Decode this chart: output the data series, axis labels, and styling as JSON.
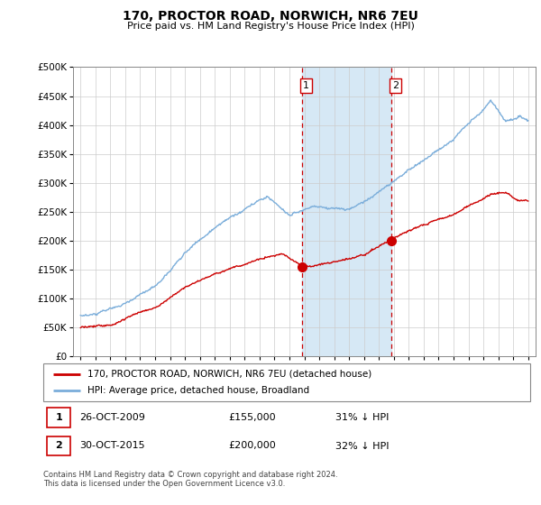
{
  "title": "170, PROCTOR ROAD, NORWICH, NR6 7EU",
  "subtitle": "Price paid vs. HM Land Registry's House Price Index (HPI)",
  "legend_line1": "170, PROCTOR ROAD, NORWICH, NR6 7EU (detached house)",
  "legend_line2": "HPI: Average price, detached house, Broadland",
  "annotation1_label": "1",
  "annotation1_date": "26-OCT-2009",
  "annotation1_price": "£155,000",
  "annotation1_hpi": "31% ↓ HPI",
  "annotation1_year": 2009.82,
  "annotation1_price_val": 155000,
  "annotation2_label": "2",
  "annotation2_date": "30-OCT-2015",
  "annotation2_price": "£200,000",
  "annotation2_hpi": "32% ↓ HPI",
  "annotation2_year": 2015.82,
  "annotation2_price_val": 200000,
  "red_color": "#cc0000",
  "blue_color": "#7aadda",
  "shade_color": "#d6e8f5",
  "vline_color": "#cc0000",
  "footer": "Contains HM Land Registry data © Crown copyright and database right 2024.\nThis data is licensed under the Open Government Licence v3.0.",
  "ylim": [
    0,
    500000
  ],
  "xlim": [
    1994.5,
    2025.5
  ]
}
